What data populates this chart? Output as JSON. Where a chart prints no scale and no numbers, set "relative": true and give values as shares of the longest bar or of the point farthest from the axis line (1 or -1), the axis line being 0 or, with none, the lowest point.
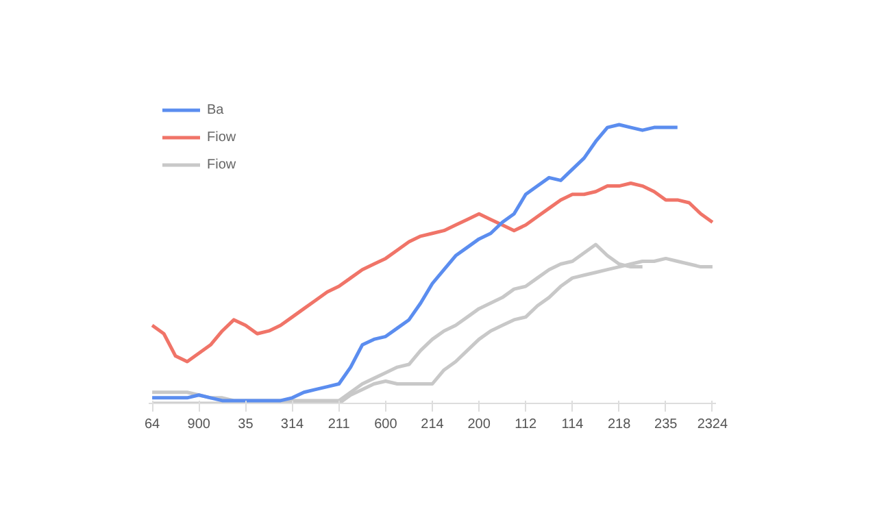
{
  "chart_data": {
    "type": "line",
    "relative": true,
    "legend": "top left",
    "categories": [
      "64",
      null,
      null,
      null,
      "900",
      null,
      null,
      null,
      "35",
      null,
      null,
      null,
      "314",
      null,
      null,
      null,
      "211",
      null,
      null,
      null,
      "600",
      null,
      null,
      null,
      "214",
      null,
      null,
      null,
      "200",
      null,
      null,
      null,
      "112",
      null,
      null,
      null,
      "114",
      null,
      null,
      null,
      "218",
      null,
      null,
      null,
      "235",
      null,
      null,
      null,
      "2324"
    ],
    "series": [
      {
        "name": "Ba",
        "color": "#5b8def",
        "values": [
          0.02,
          0.02,
          0.02,
          0.02,
          0.03,
          0.02,
          0.01,
          0.01,
          0.01,
          0.01,
          0.01,
          0.01,
          0.02,
          0.04,
          0.05,
          0.06,
          0.07,
          0.13,
          0.21,
          0.23,
          0.24,
          0.27,
          0.3,
          0.36,
          0.43,
          0.48,
          0.53,
          0.56,
          0.59,
          0.61,
          0.65,
          0.68,
          0.75,
          0.78,
          0.81,
          0.8,
          0.84,
          0.88,
          0.94,
          0.99,
          1.0,
          0.99,
          0.98,
          0.99,
          0.99,
          0.99,
          null,
          null,
          null
        ]
      },
      {
        "name": "Fiow",
        "color": "#f07468",
        "values": [
          0.28,
          0.25,
          0.17,
          0.15,
          0.18,
          0.21,
          0.26,
          0.3,
          0.28,
          0.25,
          0.26,
          0.28,
          0.31,
          0.34,
          0.37,
          0.4,
          0.42,
          0.45,
          0.48,
          0.5,
          0.52,
          0.55,
          0.58,
          0.6,
          0.61,
          0.62,
          0.64,
          0.66,
          0.68,
          0.66,
          0.64,
          0.62,
          0.64,
          0.67,
          0.7,
          0.73,
          0.75,
          0.75,
          0.76,
          0.78,
          0.78,
          0.79,
          0.78,
          0.76,
          0.73,
          0.73,
          0.72,
          0.68,
          0.65
        ]
      },
      {
        "name": "Fiow",
        "color": "#c8c8c8",
        "values": [
          0.04,
          0.04,
          0.04,
          0.04,
          0.03,
          0.02,
          0.02,
          0.01,
          0.01,
          0.01,
          0.01,
          0.01,
          0.01,
          0.01,
          0.01,
          0.01,
          0.01,
          0.04,
          0.07,
          0.09,
          0.11,
          0.13,
          0.14,
          0.19,
          0.23,
          0.26,
          0.28,
          0.31,
          0.34,
          0.36,
          0.38,
          0.41,
          0.42,
          0.45,
          0.48,
          0.5,
          0.51,
          0.54,
          0.57,
          0.53,
          0.5,
          0.49,
          0.49,
          null,
          null,
          null,
          null,
          null,
          null
        ]
      },
      {
        "color": "#c8c8c8",
        "values": [
          0.0,
          0.0,
          0.0,
          0.0,
          0.0,
          0.0,
          0.0,
          0.0,
          0.0,
          0.0,
          0.0,
          0.0,
          0.0,
          0.0,
          0.0,
          0.0,
          0.0,
          0.03,
          0.05,
          0.07,
          0.08,
          0.07,
          0.07,
          0.07,
          0.07,
          0.12,
          0.15,
          0.19,
          0.23,
          0.26,
          0.28,
          0.3,
          0.31,
          0.35,
          0.38,
          0.42,
          0.45,
          0.46,
          0.47,
          0.48,
          0.49,
          0.5,
          0.51,
          0.51,
          0.52,
          0.51,
          0.5,
          0.49,
          0.49
        ]
      }
    ]
  }
}
